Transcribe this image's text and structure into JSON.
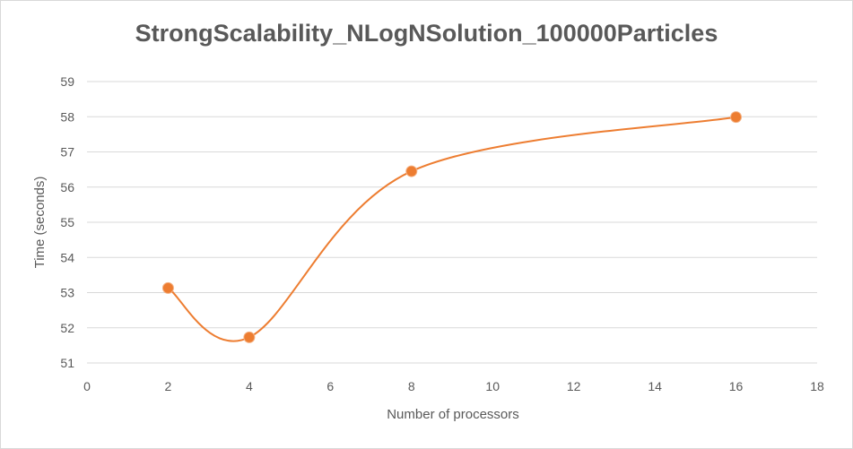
{
  "chart_data": {
    "type": "scatter",
    "title": "StrongScalability_NLogNSolution_100000Particles",
    "xlabel": "Number of processors",
    "ylabel": "Time (seconds)",
    "xlim": [
      0,
      18
    ],
    "ylim": [
      51,
      59
    ],
    "xticks": [
      0,
      2,
      4,
      6,
      8,
      10,
      12,
      14,
      16,
      18
    ],
    "yticks": [
      51,
      52,
      53,
      54,
      55,
      56,
      57,
      58,
      59
    ],
    "grid": true,
    "smooth_line": true,
    "series": [
      {
        "x": [
          2,
          4,
          8,
          16
        ],
        "y": [
          53.13,
          51.73,
          56.45,
          57.99
        ]
      }
    ],
    "colors": {
      "series": "#ED7D31",
      "grid": "#d9d9d9",
      "text": "#595959"
    }
  }
}
